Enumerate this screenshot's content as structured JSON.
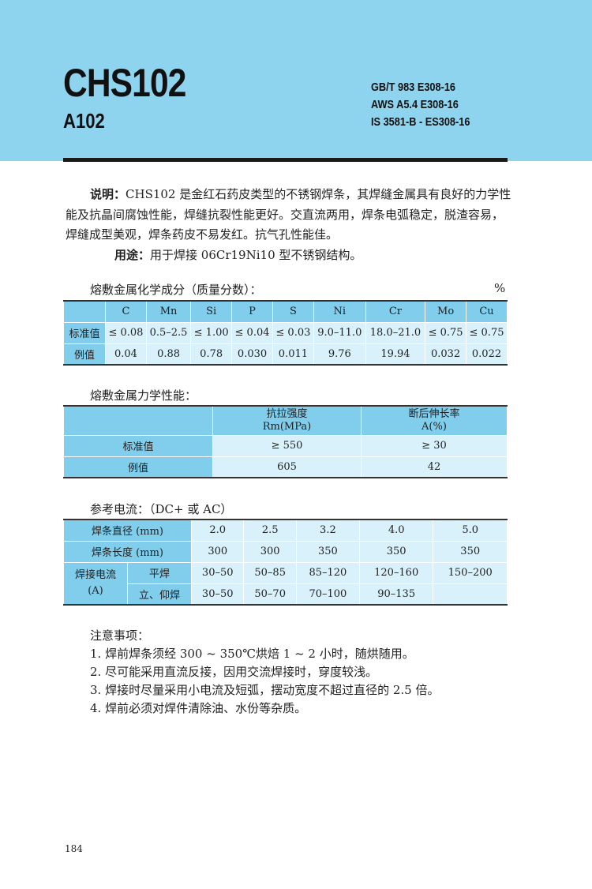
{
  "header": {
    "title": "CHS102",
    "subtitle": "A102",
    "standards": [
      "GB/T 983 E308-16",
      "AWS A5.4 E308-16",
      "IS 3581-B - ES308-16"
    ]
  },
  "description": {
    "label": "说明：",
    "text": "CHS102 是金红石药皮类型的不锈钢焊条，其焊缝金属具有良好的力学性能及抗晶间腐蚀性能，焊缝抗裂性能更好。交直流两用，焊条电弧稳定，脱渣容易，焊缝成型美观，焊条药皮不易发红。抗气孔性能佳。",
    "usage_label": "用途：",
    "usage": "用于焊接 06Cr19Ni10 型不锈钢结构。"
  },
  "chem": {
    "title": "熔敷金属化学成分（质量分数）：",
    "unit": "%",
    "columns": [
      "C",
      "Mn",
      "Si",
      "P",
      "S",
      "Ni",
      "Cr",
      "Mo",
      "Cu"
    ],
    "rows": [
      {
        "label": "标准值",
        "values": [
          "≤ 0.08",
          "0.5–2.5",
          "≤ 1.00",
          "≤ 0.04",
          "≤ 0.03",
          "9.0–11.0",
          "18.0–21.0",
          "≤ 0.75",
          "≤ 0.75"
        ]
      },
      {
        "label": "例值",
        "values": [
          "0.04",
          "0.88",
          "0.78",
          "0.030",
          "0.011",
          "9.76",
          "19.94",
          "0.032",
          "0.022"
        ]
      }
    ]
  },
  "mech": {
    "title": "熔敷金属力学性能：",
    "columns": [
      {
        "name": "抗拉强度",
        "unit": "Rm(MPa)"
      },
      {
        "name": "断后伸长率",
        "unit": "A(%)"
      }
    ],
    "rows": [
      {
        "label": "标准值",
        "values": [
          "≥ 550",
          "≥ 30"
        ]
      },
      {
        "label": "例值",
        "values": [
          "605",
          "42"
        ]
      }
    ]
  },
  "current": {
    "title": "参考电流：（DC+ 或 AC）",
    "diameter_label": "焊条直径 (mm)",
    "diameters": [
      "2.0",
      "2.5",
      "3.2",
      "4.0",
      "5.0"
    ],
    "length_label": "焊条长度 (mm)",
    "lengths": [
      "300",
      "300",
      "350",
      "350",
      "350"
    ],
    "current_label": "焊接电流",
    "current_unit": "(A)",
    "flat_label": "平焊",
    "flat": [
      "30–50",
      "50–85",
      "85–120",
      "120–160",
      "150–200"
    ],
    "vert_label": "立、仰焊",
    "vert": [
      "30–50",
      "50–70",
      "70–100",
      "90–135",
      ""
    ]
  },
  "notes": {
    "title": "注意事项：",
    "items": [
      "1. 焊前焊条须经 300 ~ 350℃烘焙 1 ~ 2 小时，随烘随用。",
      "2. 尽可能采用直流反接，因用交流焊接时，穿度较浅。",
      "3. 焊接时尽量采用小电流及短弧，摆动宽度不超过直径的 2.5 倍。",
      "4. 焊前必须对焊件清除油、水份等杂质。"
    ]
  },
  "page_number": "184",
  "colors": {
    "header": "#8fd4ef",
    "table_head": "#80cdec",
    "table_cell": "#d9f1fb"
  }
}
